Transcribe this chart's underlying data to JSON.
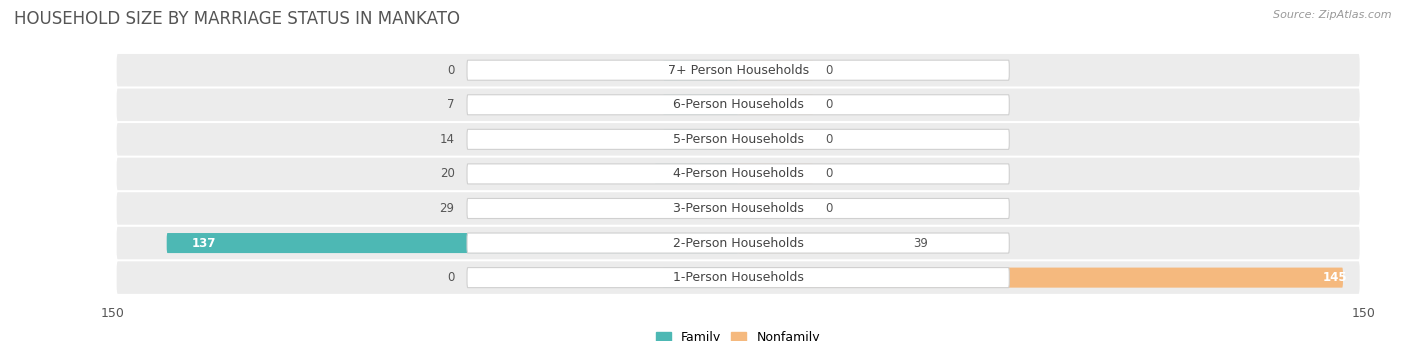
{
  "title": "HOUSEHOLD SIZE BY MARRIAGE STATUS IN MANKATO",
  "source": "Source: ZipAtlas.com",
  "categories": [
    "7+ Person Households",
    "6-Person Households",
    "5-Person Households",
    "4-Person Households",
    "3-Person Households",
    "2-Person Households",
    "1-Person Households"
  ],
  "family_values": [
    0,
    7,
    14,
    20,
    29,
    137,
    0
  ],
  "nonfamily_values": [
    0,
    0,
    0,
    0,
    0,
    39,
    145
  ],
  "family_color": "#4db8b4",
  "nonfamily_color": "#f5b97e",
  "row_bg_color": "#ececec",
  "row_bg_dark": "#e2e2e2",
  "label_bg_color": "#ffffff",
  "xlim": 150,
  "bar_height": 0.58,
  "stub_size": 18,
  "title_fontsize": 12,
  "source_fontsize": 8,
  "label_fontsize": 9,
  "value_fontsize": 8.5,
  "legend_fontsize": 9,
  "background_color": "#ffffff"
}
